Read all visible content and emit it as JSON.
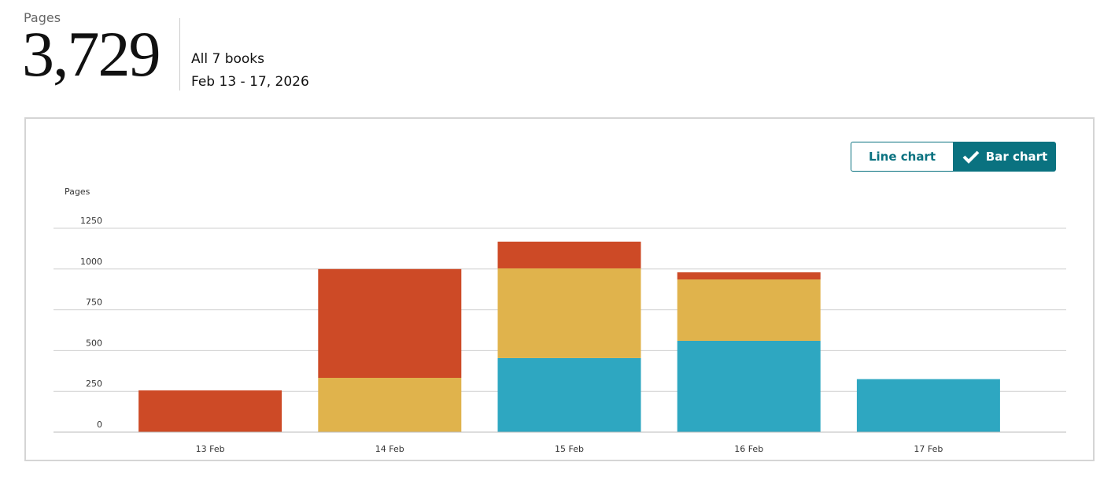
{
  "header": {
    "label": "Pages",
    "total": "3,729",
    "scope": "All 7 books",
    "range": "Feb 13 - 17, 2026"
  },
  "toggle": {
    "line": "Line chart",
    "bar": "Bar chart"
  },
  "chart_data": {
    "type": "bar",
    "stacked": true,
    "y_label": "Pages",
    "categories": [
      "13 Feb",
      "14 Feb",
      "15 Feb",
      "16 Feb",
      "17 Feb"
    ],
    "series": [
      {
        "color": "#2ea7c1",
        "values": [
          null,
          null,
          454,
          560,
          325
        ]
      },
      {
        "color": "#e0b34c",
        "values": [
          null,
          333,
          550,
          376,
          null
        ]
      },
      {
        "color": "#cd4a26",
        "values": [
          256,
          667,
          164,
          44,
          null
        ]
      }
    ],
    "ylim": [
      0,
      1250
    ],
    "yticks": [
      0,
      250,
      500,
      750,
      1000,
      1250
    ],
    "grid": true
  }
}
